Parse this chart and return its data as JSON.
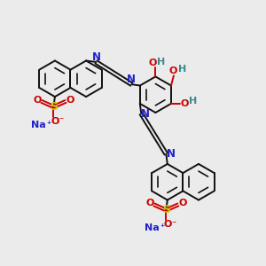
{
  "bg_color": "#ebebeb",
  "bond_color": "#111111",
  "azo_color": "#2020cc",
  "o_color": "#cc0000",
  "h_color": "#3a8a8a",
  "s_color": "#c8c800",
  "na_color": "#2020cc",
  "lw": 1.4,
  "ring_r": 0.68,
  "inner_scale": 0.6,
  "figsize": [
    3.0,
    3.0
  ],
  "dpi": 100,
  "xlim": [
    0,
    10
  ],
  "ylim": [
    0,
    10
  ]
}
